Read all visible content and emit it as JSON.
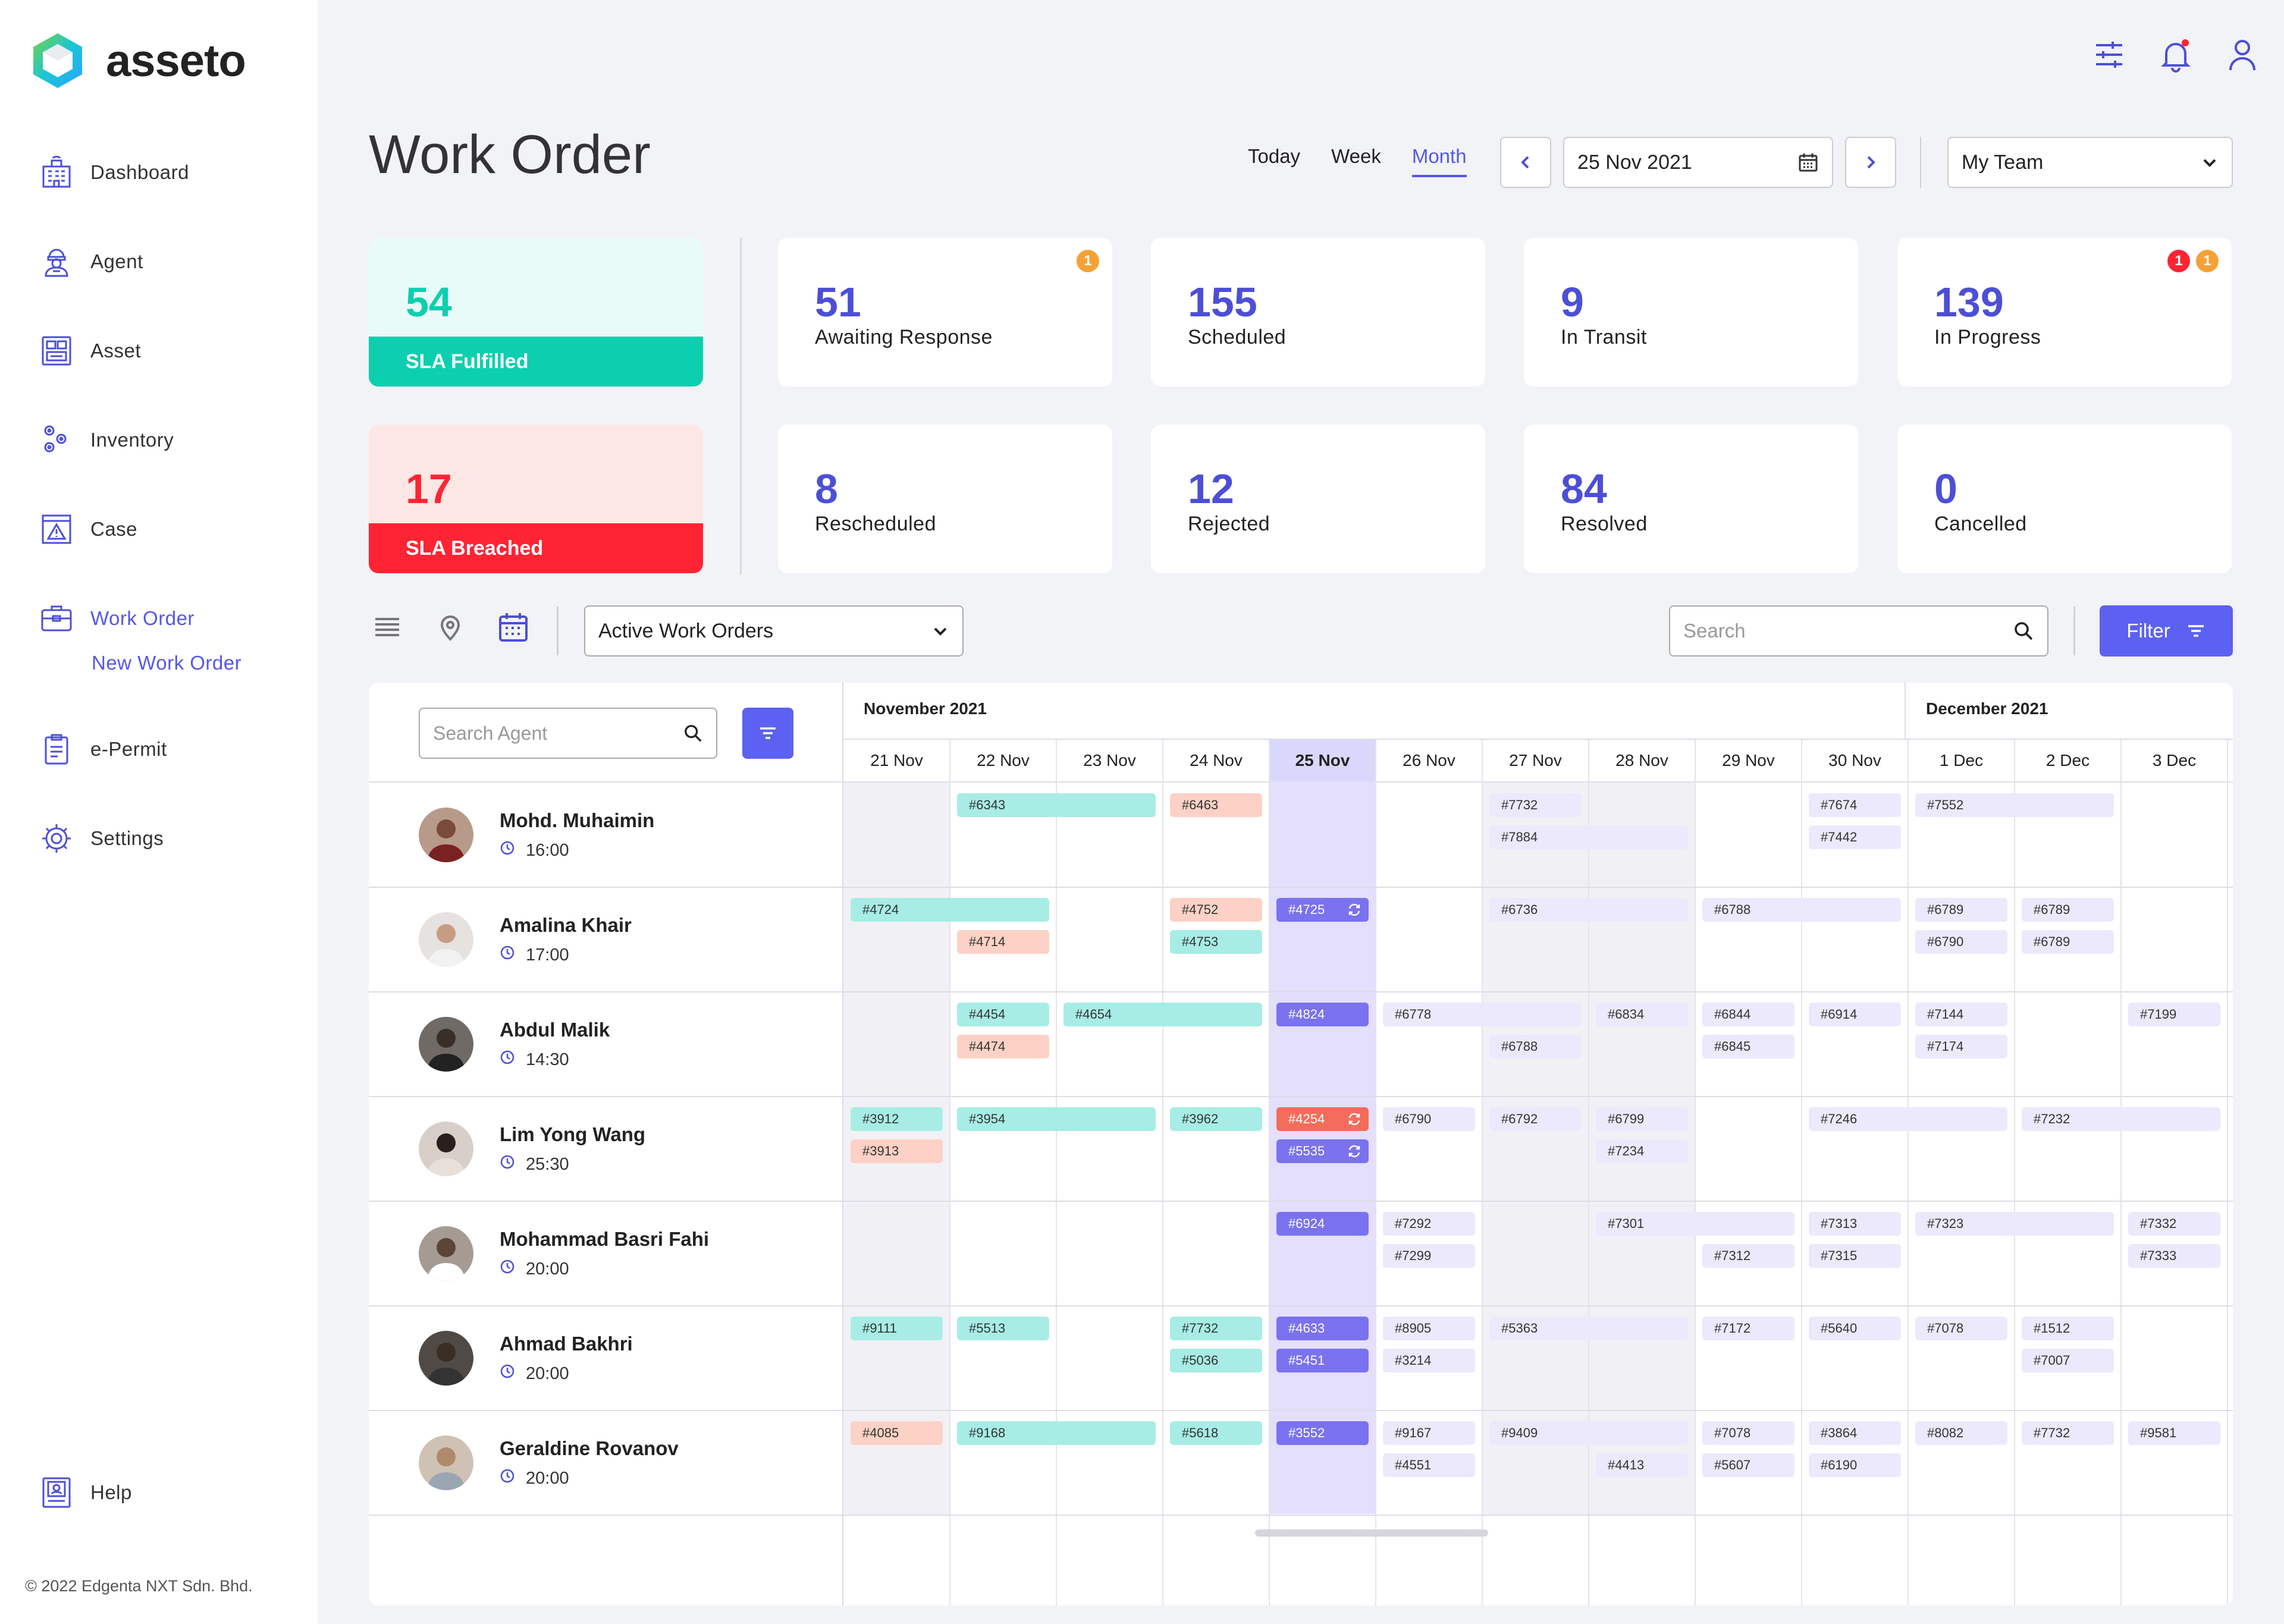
{
  "app": {
    "name": "asseto",
    "copyright": "© 2022 Edgenta NXT Sdn. Bhd."
  },
  "sidebar": {
    "items": [
      {
        "label": "Dashboard",
        "icon": "building-icon"
      },
      {
        "label": "Agent",
        "icon": "agent-icon"
      },
      {
        "label": "Asset",
        "icon": "asset-icon"
      },
      {
        "label": "Inventory",
        "icon": "inventory-icon"
      },
      {
        "label": "Case",
        "icon": "case-icon"
      },
      {
        "label": "Work Order",
        "icon": "briefcase-icon",
        "active": true,
        "sub": "New Work Order"
      },
      {
        "label": "e-Permit",
        "icon": "clipboard-icon"
      },
      {
        "label": "Settings",
        "icon": "gear-icon"
      }
    ],
    "help": "Help"
  },
  "header": {
    "title": "Work Order",
    "views": [
      "Today",
      "Week",
      "Month"
    ],
    "active_view": "Month",
    "date": "25 Nov 2021",
    "team": "My Team"
  },
  "sla": {
    "fulfilled": {
      "value": "54",
      "label": "SLA Fulfilled"
    },
    "breached": {
      "value": "17",
      "label": "SLA Breached"
    }
  },
  "kpis": [
    {
      "value": "51",
      "label": "Awaiting Response",
      "badges": [
        "1"
      ]
    },
    {
      "value": "155",
      "label": "Scheduled"
    },
    {
      "value": "9",
      "label": "In Transit"
    },
    {
      "value": "139",
      "label": "In Progress",
      "badges": [
        "1",
        "1"
      ]
    },
    {
      "value": "8",
      "label": "Rescheduled"
    },
    {
      "value": "12",
      "label": "Rejected"
    },
    {
      "value": "84",
      "label": "Resolved"
    },
    {
      "value": "0",
      "label": "Cancelled"
    }
  ],
  "toolbar": {
    "filter_select": "Active Work Orders",
    "search_placeholder": "Search",
    "filter_label": "Filter"
  },
  "scheduler": {
    "agent_search_placeholder": "Search Agent",
    "months": [
      "November 2021",
      "December 2021"
    ],
    "days": [
      "21 Nov",
      "22 Nov",
      "23 Nov",
      "24 Nov",
      "25 Nov",
      "26 Nov",
      "27 Nov",
      "28 Nov",
      "29 Nov",
      "30 Nov",
      "1 Dec",
      "2 Dec",
      "3 Dec"
    ],
    "today_index": 4,
    "agents": [
      {
        "name": "Mohd. Muhaimin",
        "time": "16:00"
      },
      {
        "name": "Amalina Khair",
        "time": "17:00"
      },
      {
        "name": "Abdul Malik",
        "time": "14:30"
      },
      {
        "name": "Lim Yong Wang",
        "time": "25:30"
      },
      {
        "name": "Mohammad Basri Fahi",
        "time": "20:00"
      },
      {
        "name": "Ahmad Bakhri",
        "time": "20:00"
      },
      {
        "name": "Geraldine Rovanov",
        "time": "20:00"
      }
    ],
    "orders": [
      {
        "row": 0,
        "day": 1,
        "span": 2,
        "slot": 0,
        "id": "#6343",
        "color": "teal"
      },
      {
        "row": 0,
        "day": 3,
        "span": 1,
        "slot": 0,
        "id": "#6463",
        "color": "peach"
      },
      {
        "row": 0,
        "day": 6,
        "span": 1,
        "slot": 0,
        "id": "#7732",
        "color": "lav"
      },
      {
        "row": 0,
        "day": 6,
        "span": 2,
        "slot": 1,
        "id": "#7884",
        "color": "lav"
      },
      {
        "row": 0,
        "day": 9,
        "span": 1,
        "slot": 0,
        "id": "#7674",
        "color": "lav"
      },
      {
        "row": 0,
        "day": 9,
        "span": 1,
        "slot": 1,
        "id": "#7442",
        "color": "lav"
      },
      {
        "row": 0,
        "day": 10,
        "span": 2,
        "slot": 0,
        "id": "#7552",
        "color": "lav"
      },
      {
        "row": 1,
        "day": 0,
        "span": 2,
        "slot": 0,
        "id": "#4724",
        "color": "teal"
      },
      {
        "row": 1,
        "day": 1,
        "span": 1,
        "slot": 1,
        "id": "#4714",
        "color": "peach"
      },
      {
        "row": 1,
        "day": 3,
        "span": 1,
        "slot": 0,
        "id": "#4752",
        "color": "peach"
      },
      {
        "row": 1,
        "day": 3,
        "span": 1,
        "slot": 1,
        "id": "#4753",
        "color": "teal"
      },
      {
        "row": 1,
        "day": 4,
        "span": 1,
        "slot": 0,
        "id": "#4725",
        "color": "purple",
        "sync": true
      },
      {
        "row": 1,
        "day": 6,
        "span": 2,
        "slot": 0,
        "id": "#6736",
        "color": "lav"
      },
      {
        "row": 1,
        "day": 8,
        "span": 2,
        "slot": 0,
        "id": "#6788",
        "color": "lav"
      },
      {
        "row": 1,
        "day": 10,
        "span": 1,
        "slot": 0,
        "id": "#6789",
        "color": "lav"
      },
      {
        "row": 1,
        "day": 10,
        "span": 1,
        "slot": 1,
        "id": "#6790",
        "color": "lav"
      },
      {
        "row": 1,
        "day": 11,
        "span": 1,
        "slot": 0,
        "id": "#6789",
        "color": "lav"
      },
      {
        "row": 1,
        "day": 11,
        "span": 1,
        "slot": 1,
        "id": "#6789",
        "color": "lav"
      },
      {
        "row": 2,
        "day": 1,
        "span": 1,
        "slot": 0,
        "id": "#4454",
        "color": "teal"
      },
      {
        "row": 2,
        "day": 1,
        "span": 1,
        "slot": 1,
        "id": "#4474",
        "color": "peach"
      },
      {
        "row": 2,
        "day": 2,
        "span": 2,
        "slot": 0,
        "id": "#4654",
        "color": "teal"
      },
      {
        "row": 2,
        "day": 4,
        "span": 1,
        "slot": 0,
        "id": "#4824",
        "color": "purple"
      },
      {
        "row": 2,
        "day": 5,
        "span": 2,
        "slot": 0,
        "id": "#6778",
        "color": "lav"
      },
      {
        "row": 2,
        "day": 6,
        "span": 1,
        "slot": 1,
        "id": "#6788",
        "color": "lav"
      },
      {
        "row": 2,
        "day": 7,
        "span": 1,
        "slot": 0,
        "id": "#6834",
        "color": "lav"
      },
      {
        "row": 2,
        "day": 8,
        "span": 1,
        "slot": 0,
        "id": "#6844",
        "color": "lav"
      },
      {
        "row": 2,
        "day": 8,
        "span": 1,
        "slot": 1,
        "id": "#6845",
        "color": "lav"
      },
      {
        "row": 2,
        "day": 9,
        "span": 1,
        "slot": 0,
        "id": "#6914",
        "color": "lav"
      },
      {
        "row": 2,
        "day": 10,
        "span": 1,
        "slot": 0,
        "id": "#7144",
        "color": "lav"
      },
      {
        "row": 2,
        "day": 10,
        "span": 1,
        "slot": 1,
        "id": "#7174",
        "color": "lav"
      },
      {
        "row": 2,
        "day": 12,
        "span": 1,
        "slot": 0,
        "id": "#7199",
        "color": "lav"
      },
      {
        "row": 3,
        "day": 0,
        "span": 1,
        "slot": 0,
        "id": "#3912",
        "color": "teal"
      },
      {
        "row": 3,
        "day": 0,
        "span": 1,
        "slot": 1,
        "id": "#3913",
        "color": "peach"
      },
      {
        "row": 3,
        "day": 1,
        "span": 2,
        "slot": 0,
        "id": "#3954",
        "color": "teal"
      },
      {
        "row": 3,
        "day": 3,
        "span": 1,
        "slot": 0,
        "id": "#3962",
        "color": "teal"
      },
      {
        "row": 3,
        "day": 4,
        "span": 1,
        "slot": 0,
        "id": "#4254",
        "color": "red",
        "sync": true
      },
      {
        "row": 3,
        "day": 4,
        "span": 1,
        "slot": 1,
        "id": "#5535",
        "color": "purple",
        "sync": true
      },
      {
        "row": 3,
        "day": 5,
        "span": 1,
        "slot": 0,
        "id": "#6790",
        "color": "lav"
      },
      {
        "row": 3,
        "day": 6,
        "span": 1,
        "slot": 0,
        "id": "#6792",
        "color": "lav"
      },
      {
        "row": 3,
        "day": 7,
        "span": 1,
        "slot": 0,
        "id": "#6799",
        "color": "lav"
      },
      {
        "row": 3,
        "day": 7,
        "span": 1,
        "slot": 1,
        "id": "#7234",
        "color": "lav"
      },
      {
        "row": 3,
        "day": 9,
        "span": 2,
        "slot": 0,
        "id": "#7246",
        "color": "lav"
      },
      {
        "row": 3,
        "day": 11,
        "span": 2,
        "slot": 0,
        "id": "#7232",
        "color": "lav"
      },
      {
        "row": 4,
        "day": 4,
        "span": 1,
        "slot": 0,
        "id": "#6924",
        "color": "purple"
      },
      {
        "row": 4,
        "day": 5,
        "span": 1,
        "slot": 0,
        "id": "#7292",
        "color": "lav"
      },
      {
        "row": 4,
        "day": 5,
        "span": 1,
        "slot": 1,
        "id": "#7299",
        "color": "lav"
      },
      {
        "row": 4,
        "day": 7,
        "span": 2,
        "slot": 0,
        "id": "#7301",
        "color": "lav"
      },
      {
        "row": 4,
        "day": 8,
        "span": 1,
        "slot": 1,
        "id": "#7312",
        "color": "lav"
      },
      {
        "row": 4,
        "day": 9,
        "span": 1,
        "slot": 0,
        "id": "#7313",
        "color": "lav"
      },
      {
        "row": 4,
        "day": 9,
        "span": 1,
        "slot": 1,
        "id": "#7315",
        "color": "lav"
      },
      {
        "row": 4,
        "day": 10,
        "span": 2,
        "slot": 0,
        "id": "#7323",
        "color": "lav"
      },
      {
        "row": 4,
        "day": 12,
        "span": 1,
        "slot": 0,
        "id": "#7332",
        "color": "lav"
      },
      {
        "row": 4,
        "day": 12,
        "span": 1,
        "slot": 1,
        "id": "#7333",
        "color": "lav"
      },
      {
        "row": 5,
        "day": 0,
        "span": 1,
        "slot": 0,
        "id": "#9111",
        "color": "teal"
      },
      {
        "row": 5,
        "day": 1,
        "span": 1,
        "slot": 0,
        "id": "#5513",
        "color": "teal"
      },
      {
        "row": 5,
        "day": 3,
        "span": 1,
        "slot": 0,
        "id": "#7732",
        "color": "teal"
      },
      {
        "row": 5,
        "day": 3,
        "span": 1,
        "slot": 1,
        "id": "#5036",
        "color": "teal"
      },
      {
        "row": 5,
        "day": 4,
        "span": 1,
        "slot": 0,
        "id": "#4633",
        "color": "purple"
      },
      {
        "row": 5,
        "day": 4,
        "span": 1,
        "slot": 1,
        "id": "#5451",
        "color": "purple"
      },
      {
        "row": 5,
        "day": 5,
        "span": 1,
        "slot": 0,
        "id": "#8905",
        "color": "lav"
      },
      {
        "row": 5,
        "day": 5,
        "span": 1,
        "slot": 1,
        "id": "#3214",
        "color": "lav"
      },
      {
        "row": 5,
        "day": 6,
        "span": 2,
        "slot": 0,
        "id": "#5363",
        "color": "lav"
      },
      {
        "row": 5,
        "day": 8,
        "span": 1,
        "slot": 0,
        "id": "#7172",
        "color": "lav"
      },
      {
        "row": 5,
        "day": 9,
        "span": 1,
        "slot": 0,
        "id": "#5640",
        "color": "lav"
      },
      {
        "row": 5,
        "day": 10,
        "span": 1,
        "slot": 0,
        "id": "#7078",
        "color": "lav"
      },
      {
        "row": 5,
        "day": 11,
        "span": 1,
        "slot": 0,
        "id": "#1512",
        "color": "lav"
      },
      {
        "row": 5,
        "day": 11,
        "span": 1,
        "slot": 1,
        "id": "#7007",
        "color": "lav"
      },
      {
        "row": 6,
        "day": 0,
        "span": 1,
        "slot": 0,
        "id": "#4085",
        "color": "peach"
      },
      {
        "row": 6,
        "day": 1,
        "span": 2,
        "slot": 0,
        "id": "#9168",
        "color": "teal"
      },
      {
        "row": 6,
        "day": 3,
        "span": 1,
        "slot": 0,
        "id": "#5618",
        "color": "teal"
      },
      {
        "row": 6,
        "day": 4,
        "span": 1,
        "slot": 0,
        "id": "#3552",
        "color": "purple"
      },
      {
        "row": 6,
        "day": 5,
        "span": 1,
        "slot": 0,
        "id": "#9167",
        "color": "lav"
      },
      {
        "row": 6,
        "day": 5,
        "span": 1,
        "slot": 1,
        "id": "#4551",
        "color": "lav"
      },
      {
        "row": 6,
        "day": 6,
        "span": 2,
        "slot": 0,
        "id": "#9409",
        "color": "lav"
      },
      {
        "row": 6,
        "day": 7,
        "span": 1,
        "slot": 1,
        "id": "#4413",
        "color": "lav"
      },
      {
        "row": 6,
        "day": 8,
        "span": 1,
        "slot": 0,
        "id": "#7078",
        "color": "lav"
      },
      {
        "row": 6,
        "day": 8,
        "span": 1,
        "slot": 1,
        "id": "#5607",
        "color": "lav"
      },
      {
        "row": 6,
        "day": 9,
        "span": 1,
        "slot": 0,
        "id": "#3864",
        "color": "lav"
      },
      {
        "row": 6,
        "day": 9,
        "span": 1,
        "slot": 1,
        "id": "#6190",
        "color": "lav"
      },
      {
        "row": 6,
        "day": 10,
        "span": 1,
        "slot": 0,
        "id": "#8082",
        "color": "lav"
      },
      {
        "row": 6,
        "day": 11,
        "span": 1,
        "slot": 0,
        "id": "#7732",
        "color": "lav"
      },
      {
        "row": 6,
        "day": 12,
        "span": 1,
        "slot": 0,
        "id": "#9581",
        "color": "lav"
      }
    ]
  },
  "colors": {
    "accent": "#5457e8",
    "fulfilled": "#0ccfaf",
    "breached": "#ff2433",
    "today": "#e3dffc"
  }
}
